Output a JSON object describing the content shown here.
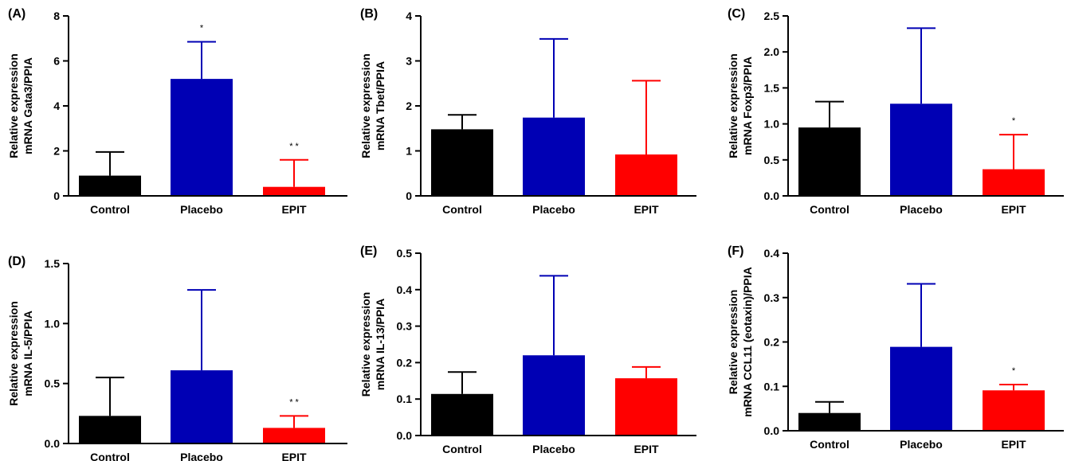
{
  "chart_data": [
    {
      "type": "bar",
      "panel_label": "(A)",
      "ylabel_line1": "Relative expression",
      "ylabel_line2": "mRNA Gata3/PPIA",
      "categories": [
        "Control",
        "Placebo",
        "EPIT"
      ],
      "values": [
        0.9,
        5.2,
        0.4
      ],
      "errors": [
        1.05,
        1.65,
        1.2
      ],
      "significance": [
        "",
        "*",
        "* *"
      ],
      "ylim": [
        0,
        8
      ],
      "yticks": [
        "0",
        "2",
        "4",
        "6",
        "8"
      ],
      "ytick_values": [
        0,
        2,
        4,
        6,
        8
      ]
    },
    {
      "type": "bar",
      "panel_label": "(B)",
      "ylabel_line1": "Relative expression",
      "ylabel_line2": "mRNA Tbet/PPIA",
      "categories": [
        "Control",
        "Placebo",
        "EPIT"
      ],
      "values": [
        1.48,
        1.74,
        0.92
      ],
      "errors": [
        0.32,
        1.75,
        1.64
      ],
      "significance": [
        "",
        "",
        ""
      ],
      "ylim": [
        0,
        4
      ],
      "yticks": [
        "0",
        "1",
        "2",
        "3",
        "4"
      ],
      "ytick_values": [
        0,
        1,
        2,
        3,
        4
      ]
    },
    {
      "type": "bar",
      "panel_label": "(C)",
      "ylabel_line1": "Relative expression",
      "ylabel_line2": "mRNA Foxp3/PPIA",
      "categories": [
        "Control",
        "Placebo",
        "EPIT"
      ],
      "values": [
        0.95,
        1.28,
        0.37
      ],
      "errors": [
        0.36,
        1.05,
        0.48
      ],
      "significance": [
        "",
        "",
        "*"
      ],
      "ylim": [
        0,
        2.5
      ],
      "yticks": [
        "0.0",
        "0.5",
        "1.0",
        "1.5",
        "2.0",
        "2.5"
      ],
      "ytick_values": [
        0,
        0.5,
        1,
        1.5,
        2,
        2.5
      ]
    },
    {
      "type": "bar",
      "panel_label": "(D)",
      "ylabel_line1": "Relative expression",
      "ylabel_line2": "mRNA IL-5/PPIA",
      "categories": [
        "Control",
        "Placebo",
        "EPIT"
      ],
      "values": [
        0.23,
        0.61,
        0.13
      ],
      "errors": [
        0.32,
        0.67,
        0.1
      ],
      "significance": [
        "",
        "",
        "* *"
      ],
      "ylim": [
        0,
        1.5
      ],
      "yticks": [
        "0.0",
        "0.5",
        "1.0",
        "1.5"
      ],
      "ytick_values": [
        0,
        0.5,
        1,
        1.5
      ]
    },
    {
      "type": "bar",
      "panel_label": "(E)",
      "ylabel_line1": "Relative expression",
      "ylabel_line2": "mRNA IL-13/PPIA",
      "categories": [
        "Control",
        "Placebo",
        "EPIT"
      ],
      "values": [
        0.114,
        0.22,
        0.157
      ],
      "errors": [
        0.06,
        0.218,
        0.031
      ],
      "significance": [
        "",
        "",
        ""
      ],
      "ylim": [
        0,
        0.5
      ],
      "yticks": [
        "0.0",
        "0.1",
        "0.2",
        "0.3",
        "0.4",
        "0.5"
      ],
      "ytick_values": [
        0,
        0.1,
        0.2,
        0.3,
        0.4,
        0.5
      ]
    },
    {
      "type": "bar",
      "panel_label": "(F)",
      "ylabel_line1": "Relative expression",
      "ylabel_line2": "mRNA CCL11 (eotaxin)/PPIA",
      "categories": [
        "Control",
        "Placebo",
        "EPIT"
      ],
      "values": [
        0.04,
        0.189,
        0.091
      ],
      "errors": [
        0.025,
        0.142,
        0.013
      ],
      "significance": [
        "",
        "",
        "*"
      ],
      "ylim": [
        0,
        0.4
      ],
      "yticks": [
        "0.0",
        "0.1",
        "0.2",
        "0.3",
        "0.4"
      ],
      "ytick_values": [
        0,
        0.1,
        0.2,
        0.3,
        0.4
      ]
    }
  ],
  "colors": {
    "Control": "#000000",
    "Placebo": "#0000b4",
    "EPIT": "#ff0000"
  }
}
